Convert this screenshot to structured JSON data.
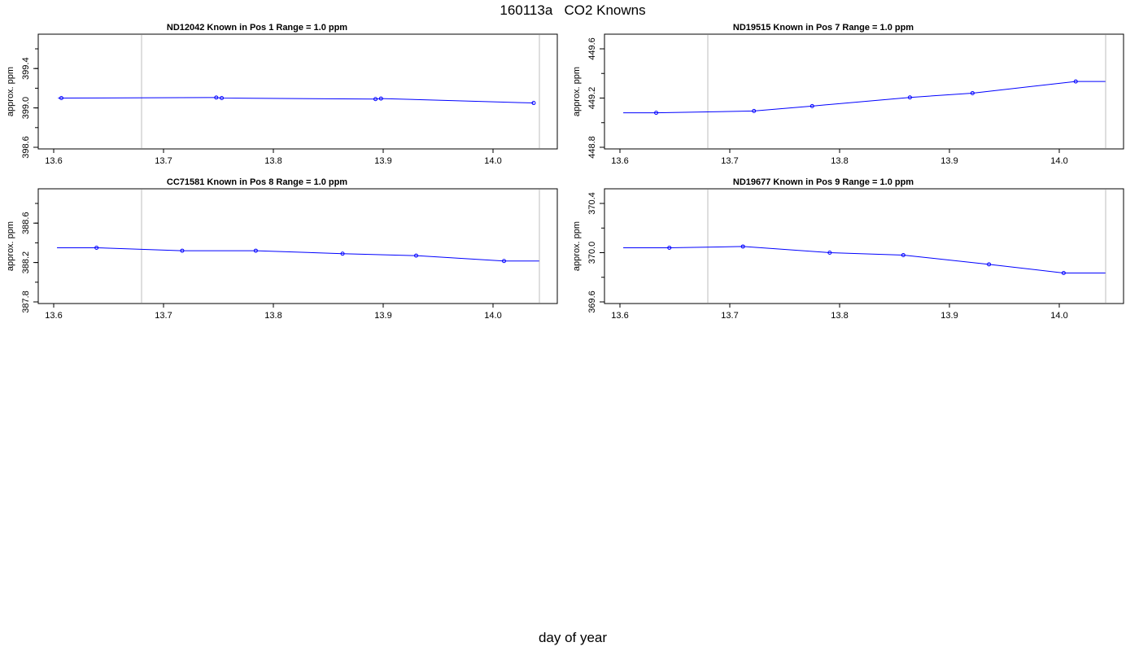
{
  "title": "160113a   CO2 Knowns",
  "xlabel": "day of year",
  "colors": {
    "series": "#0000ff",
    "divider": "#bebebe",
    "axis": "#000000"
  },
  "chart_data": [
    {
      "type": "line",
      "title": "ND12042    Known in Pos 1         Range = 1.0 ppm",
      "xlabel": "",
      "ylabel": "approx. ppm",
      "xlim": [
        13.6,
        14.04
      ],
      "ylim": [
        398.6,
        399.6
      ],
      "xticks": [
        "13.6",
        "13.7",
        "13.8",
        "13.9",
        "14.0"
      ],
      "yticks": [
        "398.6",
        "399.0",
        "399.4"
      ],
      "vlines": [
        13.68,
        14.04
      ],
      "x": [
        13.607,
        13.748,
        13.753,
        13.893,
        13.898,
        14.037
      ],
      "y": [
        399.1,
        399.105,
        399.1,
        399.09,
        399.095,
        399.05
      ],
      "line_start_x": 13.604
    },
    {
      "type": "line",
      "title": "ND19515    Known in Pos 7         Range = 1.0 ppm",
      "xlabel": "",
      "ylabel": "approx. ppm",
      "xlim": [
        13.6,
        14.04
      ],
      "ylim": [
        448.8,
        449.6
      ],
      "xticks": [
        "13.6",
        "13.7",
        "13.8",
        "13.9",
        "14.0"
      ],
      "yticks": [
        "448.8",
        "449.2",
        "449.6"
      ],
      "vlines": [
        13.68,
        14.04
      ],
      "x": [
        13.633,
        13.722,
        13.775,
        13.864,
        13.921,
        14.015
      ],
      "y": [
        449.08,
        449.095,
        449.135,
        449.205,
        449.24,
        449.335
      ],
      "line_start_x": 13.603,
      "line_end_x": 14.042
    },
    {
      "type": "line",
      "title": "CC71581    Known in Pos 8         Range = 1.0 ppm",
      "xlabel": "",
      "ylabel": "approx. ppm",
      "xlim": [
        13.6,
        14.04
      ],
      "ylim": [
        387.8,
        388.8
      ],
      "xticks": [
        "13.6",
        "13.7",
        "13.8",
        "13.9",
        "14.0"
      ],
      "yticks": [
        "387.8",
        "388.2",
        "388.6"
      ],
      "vlines": [
        13.68,
        14.04
      ],
      "x": [
        13.639,
        13.717,
        13.784,
        13.863,
        13.93,
        14.01
      ],
      "y": [
        388.35,
        388.32,
        388.32,
        388.29,
        388.27,
        388.215
      ],
      "line_start_x": 13.603,
      "line_end_x": 14.042
    },
    {
      "type": "line",
      "title": "ND19677    Known in Pos 9         Range = 1.0 ppm",
      "xlabel": "",
      "ylabel": "approx. ppm",
      "xlim": [
        13.6,
        14.04
      ],
      "ylim": [
        369.6,
        370.4
      ],
      "xticks": [
        "13.6",
        "13.7",
        "13.8",
        "13.9",
        "14.0"
      ],
      "yticks": [
        "369.6",
        "370.0",
        "370.4"
      ],
      "vlines": [
        13.68,
        14.04
      ],
      "x": [
        13.645,
        13.712,
        13.791,
        13.858,
        13.936,
        14.004
      ],
      "y": [
        370.04,
        370.05,
        370.0,
        369.98,
        369.905,
        369.835
      ],
      "line_start_x": 13.603,
      "line_end_x": 14.042
    }
  ]
}
